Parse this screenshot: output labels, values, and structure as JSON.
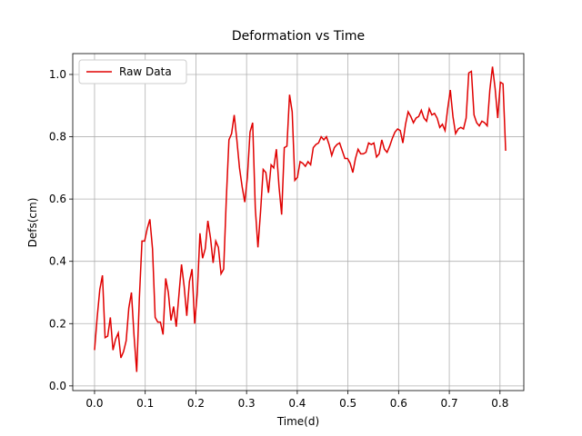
{
  "chart_data": {
    "type": "line",
    "title": "Deformation vs Time",
    "x_label": "Time(d)",
    "y_label": "Defs(cm)",
    "x": [
      0,
      0.0052,
      0.0104,
      0.0156,
      0.0208,
      0.026,
      0.0312,
      0.0364,
      0.0416,
      0.0468,
      0.052,
      0.0572,
      0.0624,
      0.0676,
      0.0728,
      0.078,
      0.0832,
      0.0884,
      0.0936,
      0.0988,
      0.104,
      0.1092,
      0.1144,
      0.1196,
      0.1248,
      0.13,
      0.1352,
      0.1404,
      0.1456,
      0.1508,
      0.156,
      0.1612,
      0.1664,
      0.1716,
      0.1768,
      0.182,
      0.1872,
      0.1924,
      0.1976,
      0.2028,
      0.208,
      0.2132,
      0.2184,
      0.2236,
      0.2288,
      0.234,
      0.2392,
      0.2444,
      0.2496,
      0.2548,
      0.26,
      0.2652,
      0.2704,
      0.2756,
      0.2808,
      0.286,
      0.2912,
      0.2964,
      0.3016,
      0.3068,
      0.312,
      0.3172,
      0.3224,
      0.3276,
      0.3328,
      0.338,
      0.3432,
      0.3484,
      0.3536,
      0.3588,
      0.364,
      0.3692,
      0.3744,
      0.3796,
      0.3848,
      0.39,
      0.3952,
      0.4004,
      0.4056,
      0.4108,
      0.416,
      0.4212,
      0.4264,
      0.4316,
      0.4368,
      0.442,
      0.4472,
      0.4524,
      0.4576,
      0.4628,
      0.468,
      0.4732,
      0.4784,
      0.4836,
      0.4888,
      0.494,
      0.4992,
      0.5044,
      0.5096,
      0.5148,
      0.52,
      0.5252,
      0.5304,
      0.5356,
      0.5408,
      0.546,
      0.5512,
      0.5564,
      0.5616,
      0.5668,
      0.572,
      0.5772,
      0.5824,
      0.5876,
      0.5928,
      0.598,
      0.6032,
      0.6084,
      0.6136,
      0.6188,
      0.624,
      0.6292,
      0.6344,
      0.6396,
      0.6448,
      0.65,
      0.6552,
      0.6604,
      0.6656,
      0.6708,
      0.676,
      0.6812,
      0.6864,
      0.6916,
      0.6968,
      0.702,
      0.7072,
      0.7124,
      0.7176,
      0.7228,
      0.728,
      0.7332,
      0.7384,
      0.7436,
      0.7488,
      0.754,
      0.7592,
      0.7644,
      0.7696,
      0.7748,
      0.78,
      0.7852,
      0.7904,
      0.7956,
      0.8008,
      0.806,
      0.8112
    ],
    "series": [
      {
        "name": "Raw Data",
        "color": "#e00000",
        "values": [
          0.115,
          0.22,
          0.31,
          0.355,
          0.155,
          0.16,
          0.22,
          0.115,
          0.15,
          0.17,
          0.09,
          0.11,
          0.145,
          0.25,
          0.3,
          0.16,
          0.045,
          0.28,
          0.465,
          0.465,
          0.505,
          0.535,
          0.44,
          0.22,
          0.205,
          0.205,
          0.165,
          0.345,
          0.3,
          0.21,
          0.255,
          0.19,
          0.29,
          0.39,
          0.32,
          0.225,
          0.335,
          0.375,
          0.2,
          0.3,
          0.49,
          0.41,
          0.44,
          0.53,
          0.475,
          0.395,
          0.465,
          0.445,
          0.36,
          0.375,
          0.6,
          0.79,
          0.81,
          0.87,
          0.79,
          0.7,
          0.64,
          0.59,
          0.67,
          0.815,
          0.845,
          0.57,
          0.445,
          0.56,
          0.695,
          0.685,
          0.62,
          0.71,
          0.7,
          0.76,
          0.64,
          0.55,
          0.765,
          0.77,
          0.935,
          0.88,
          0.66,
          0.67,
          0.72,
          0.715,
          0.705,
          0.72,
          0.71,
          0.765,
          0.775,
          0.78,
          0.8,
          0.79,
          0.8,
          0.775,
          0.74,
          0.765,
          0.775,
          0.78,
          0.755,
          0.73,
          0.73,
          0.715,
          0.685,
          0.73,
          0.76,
          0.745,
          0.745,
          0.75,
          0.78,
          0.775,
          0.78,
          0.735,
          0.745,
          0.79,
          0.76,
          0.75,
          0.77,
          0.795,
          0.815,
          0.825,
          0.82,
          0.78,
          0.84,
          0.88,
          0.865,
          0.845,
          0.86,
          0.865,
          0.885,
          0.86,
          0.85,
          0.89,
          0.87,
          0.875,
          0.86,
          0.83,
          0.84,
          0.82,
          0.89,
          0.95,
          0.865,
          0.81,
          0.825,
          0.83,
          0.825,
          0.86,
          1.005,
          1.01,
          0.87,
          0.845,
          0.835,
          0.85,
          0.845,
          0.835,
          0.95,
          1.025,
          0.955,
          0.86,
          0.975,
          0.97,
          0.755
        ]
      }
    ],
    "xlim": [
      -0.043,
      0.847
    ],
    "ylim": [
      -0.015,
      1.067
    ],
    "xticks": [
      {
        "value": 0,
        "label": "0.0"
      },
      0.1,
      0.2,
      0.3,
      0.4,
      0.5,
      0.6,
      0.7,
      0.8
    ],
    "yticks": [
      {
        "value": 0,
        "label": "0.0"
      },
      0.2,
      0.4,
      0.6,
      0.8,
      {
        "value": 1,
        "label": "1.0"
      }
    ],
    "grid": true,
    "legend": "upper left"
  }
}
